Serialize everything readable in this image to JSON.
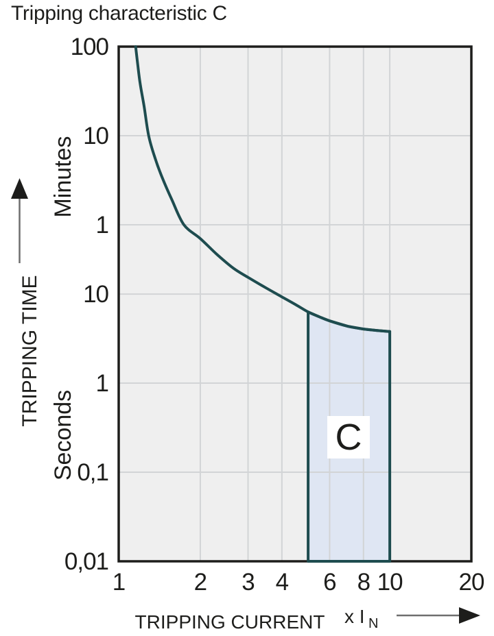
{
  "title": "Tripping characteristic C",
  "chart_data": {
    "type": "line",
    "title": "Tripping characteristic C",
    "x_axis": {
      "label": "TRIPPING CURRENT",
      "unit_main": "x I",
      "unit_sub": "N",
      "scale": "log",
      "range": [
        1,
        20
      ],
      "ticks": [
        1,
        2,
        3,
        4,
        6,
        8,
        10,
        20
      ],
      "tick_labels": [
        "1",
        "2",
        "3",
        "4",
        "6",
        "8",
        "10",
        "20"
      ],
      "gridlines": [
        2,
        3,
        4,
        6,
        8,
        10
      ]
    },
    "y_axis": {
      "label": "TRIPPING TIME",
      "unit_upper": "Minutes",
      "unit_lower": "Seconds",
      "scale": "log",
      "range_seconds": [
        0.01,
        6000
      ],
      "ticks": [
        {
          "value_seconds": 6000,
          "label": "100"
        },
        {
          "value_seconds": 600,
          "label": "10"
        },
        {
          "value_seconds": 60,
          "label": "1"
        },
        {
          "value_seconds": 10,
          "label": "10"
        },
        {
          "value_seconds": 1,
          "label": "1"
        },
        {
          "value_seconds": 0.1,
          "label": "0,1"
        },
        {
          "value_seconds": 0.01,
          "label": "0,01"
        }
      ],
      "gridlines_seconds": [
        600,
        60,
        10,
        1,
        0.1
      ]
    },
    "curve": {
      "name": "C tripping characteristic curve",
      "points": [
        [
          1.155,
          6000
        ],
        [
          1.175,
          3800
        ],
        [
          1.2,
          2300
        ],
        [
          1.24,
          1300
        ],
        [
          1.29,
          600
        ],
        [
          1.36,
          340
        ],
        [
          1.45,
          200
        ],
        [
          1.57,
          115
        ],
        [
          1.74,
          60
        ],
        [
          2.0,
          42
        ],
        [
          2.3,
          28
        ],
        [
          2.65,
          19.5
        ],
        [
          3.0,
          15.4
        ],
        [
          3.5,
          11.7
        ],
        [
          4.0,
          9.3
        ],
        [
          4.5,
          7.6
        ],
        [
          5.0,
          6.3
        ],
        [
          5.5,
          5.55
        ],
        [
          6.0,
          5.0
        ],
        [
          7.0,
          4.35
        ],
        [
          8.0,
          4.05
        ],
        [
          9.0,
          3.9
        ],
        [
          10.0,
          3.8
        ]
      ]
    },
    "region": {
      "label": "C",
      "x_range": [
        5,
        10
      ],
      "bottom_seconds": 0.01,
      "top_follows_curve": true
    },
    "colors": {
      "curve": "#1e4c4f",
      "region_fill": "#dfe6f3",
      "region_outline": "#1e4c4f",
      "plot_bg": "#efefef",
      "grid": "#d2d4d6",
      "frame": "#1d1d1b",
      "text": "#1d1d1b",
      "arrow_line": "#6e6e6e",
      "arrow_head": "#1d1d1b",
      "label_box": "#ffffff",
      "page_bg": "#ffffff"
    }
  }
}
